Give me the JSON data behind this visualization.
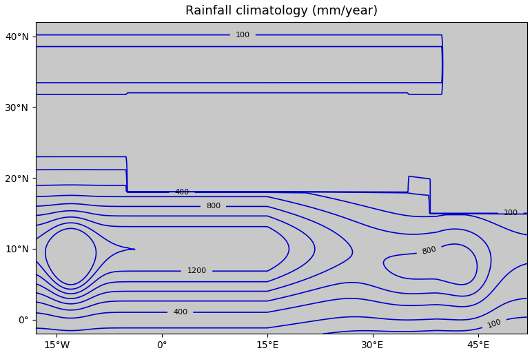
{
  "title": "Rainfall climatology (mm/year)",
  "lon_min": -18,
  "lon_max": 52,
  "lat_min": -2,
  "lat_max": 42,
  "contour_levels": [
    100,
    200,
    400,
    600,
    800,
    1000,
    1200,
    1400,
    1600
  ],
  "contour_label_levels": [
    100,
    400,
    800,
    1200
  ],
  "contour_color": "#0000CD",
  "land_color": "#C8C8C8",
  "ocean_color": "#C8C8C8",
  "background_color": "#FFFFFF",
  "title_fontsize": 13,
  "tick_label_fontsize": 10,
  "contour_linewidth": 1.2,
  "xticks": [
    -15,
    0,
    15,
    30,
    45
  ],
  "yticks": [
    0,
    10,
    20,
    30,
    40
  ]
}
